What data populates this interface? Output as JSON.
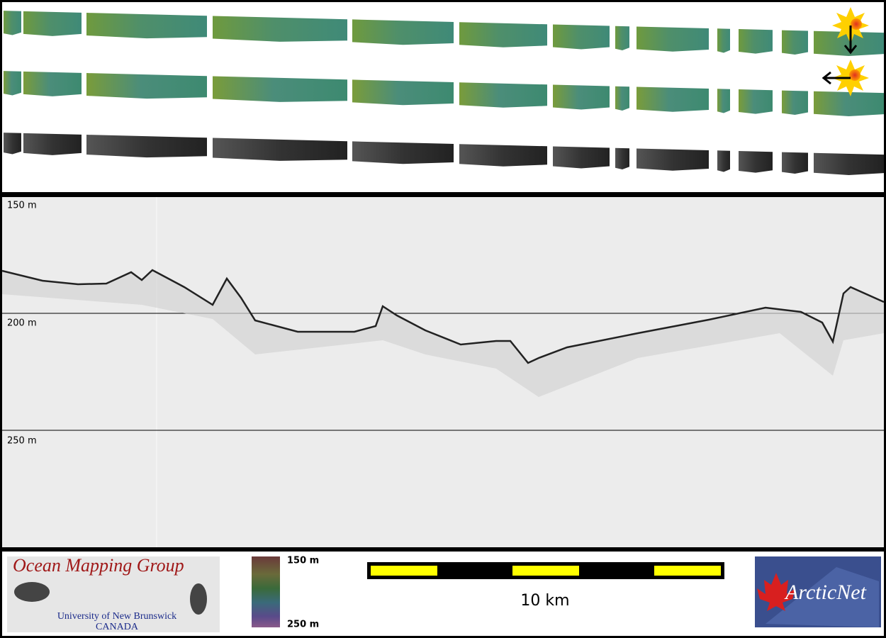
{
  "profile": {
    "depth_labels": [
      "150 m",
      "200 m",
      "250 m"
    ]
  },
  "colorbar": {
    "top_label": "150 m",
    "bottom_label": "250 m"
  },
  "scale_bar": {
    "label": "10 km"
  },
  "logos": {
    "omg": {
      "title": "Ocean Mapping Group",
      "line1": "University of New Brunswick",
      "line2": "CANADA"
    },
    "arcticnet": {
      "title": "ArcticNet"
    }
  }
}
